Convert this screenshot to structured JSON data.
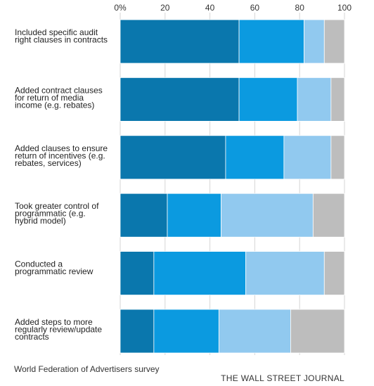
{
  "chart_data": {
    "type": "bar",
    "orientation": "horizontal",
    "stacked": true,
    "xlim": [
      0,
      100
    ],
    "xticks": [
      "0%",
      "20",
      "40",
      "60",
      "80",
      "100"
    ],
    "tick_values": [
      0,
      20,
      40,
      60,
      80,
      100
    ],
    "categories": [
      [
        "Included specific audit",
        "right clauses in contracts"
      ],
      [
        "Added contract clauses",
        "for return of media",
        "income (e.g. rebates)"
      ],
      [
        "Added clauses to ensure",
        "return of incentives (e.g.",
        "rebates, services)"
      ],
      [
        "Took greater control of",
        "programmatic (e.g.",
        "hybrid model)"
      ],
      [
        "Conducted a",
        "programmatic review"
      ],
      [
        "Added steps to more",
        "regularly review/update",
        "contracts"
      ]
    ],
    "series": [
      {
        "color": "#0a77ad",
        "values": [
          53,
          53,
          47,
          21,
          15,
          15
        ]
      },
      {
        "color": "#0b9ae0",
        "values": [
          29,
          26,
          26,
          24,
          41,
          29
        ]
      },
      {
        "color": "#91c9ef",
        "values": [
          9,
          15,
          21,
          41,
          35,
          32
        ]
      },
      {
        "color": "#bdbdbd",
        "values": [
          9,
          6,
          6,
          14,
          9,
          24
        ]
      }
    ],
    "grid": true
  },
  "source": "World Federation of Advertisers survey",
  "credit": "THE WALL STREET JOURNAL"
}
